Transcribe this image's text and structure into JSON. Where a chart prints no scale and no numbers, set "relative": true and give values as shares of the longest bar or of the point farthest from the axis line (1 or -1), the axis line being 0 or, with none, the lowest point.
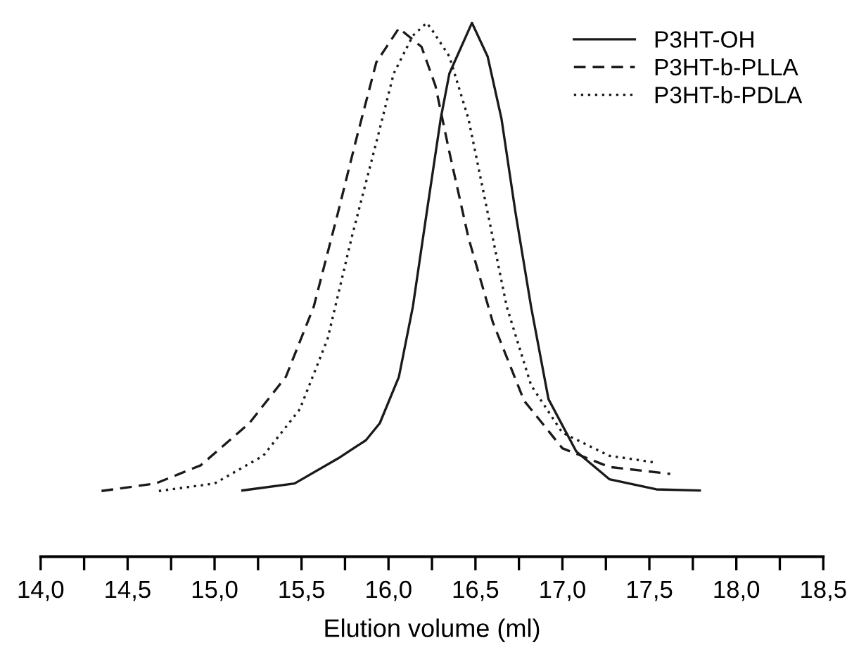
{
  "chart_data": {
    "type": "line",
    "xlabel": "Elution volume (ml)",
    "relative": true,
    "legend": "top right",
    "grid": false,
    "marker": "none",
    "xlim": [
      14.0,
      18.5
    ],
    "xticks": [
      {
        "value": 14.0,
        "label": "14,0"
      },
      {
        "value": 14.25,
        "label": null
      },
      {
        "value": 14.5,
        "label": "14,5"
      },
      {
        "value": 14.75,
        "label": null
      },
      {
        "value": 15.0,
        "label": "15,0"
      },
      {
        "value": 15.25,
        "label": null
      },
      {
        "value": 15.5,
        "label": "15,5"
      },
      {
        "value": 15.75,
        "label": null
      },
      {
        "value": 16.0,
        "label": "16,0"
      },
      {
        "value": 16.25,
        "label": null
      },
      {
        "value": 16.5,
        "label": "16,5"
      },
      {
        "value": 16.75,
        "label": null
      },
      {
        "value": 17.0,
        "label": "17,0"
      },
      {
        "value": 17.25,
        "label": null
      },
      {
        "value": 17.5,
        "label": "17,5"
      },
      {
        "value": 17.75,
        "label": null
      },
      {
        "value": 18.0,
        "label": "18,0"
      },
      {
        "value": 18.25,
        "label": null
      },
      {
        "value": 18.5,
        "label": "18,5"
      }
    ],
    "series": [
      {
        "name": "P3HT-OH",
        "color": "#1a1a1a",
        "line_style": "solid",
        "x": [
          15.16,
          15.46,
          15.71,
          15.87,
          15.95,
          16.06,
          16.14,
          16.22,
          16.3,
          16.35,
          16.48,
          16.57,
          16.65,
          16.73,
          16.82,
          16.92,
          17.08,
          17.27,
          17.54,
          17.79
        ],
        "values": [
          0.124,
          0.137,
          0.184,
          0.218,
          0.25,
          0.337,
          0.468,
          0.645,
          0.82,
          0.905,
          1.0,
          0.937,
          0.82,
          0.645,
          0.468,
          0.295,
          0.197,
          0.145,
          0.126,
          0.124
        ]
      },
      {
        "name": "P3HT-b-PLLA",
        "color": "#1a1a1a",
        "line_style": "dashed",
        "x": [
          14.35,
          14.66,
          14.92,
          15.2,
          15.41,
          15.57,
          15.71,
          15.81,
          15.93,
          16.06,
          16.19,
          16.27,
          16.35,
          16.46,
          16.6,
          16.78,
          17.0,
          17.27,
          17.62
        ],
        "values": [
          0.123,
          0.137,
          0.171,
          0.25,
          0.337,
          0.468,
          0.645,
          0.776,
          0.926,
          0.99,
          0.955,
          0.882,
          0.758,
          0.597,
          0.439,
          0.292,
          0.203,
          0.168,
          0.155
        ]
      },
      {
        "name": "P3HT-b-PDLA",
        "color": "#1a1a1a",
        "line_style": "dotted",
        "x": [
          14.68,
          15.0,
          15.28,
          15.49,
          15.65,
          15.79,
          15.93,
          16.03,
          16.14,
          16.22,
          16.25,
          16.35,
          16.46,
          16.57,
          16.68,
          16.82,
          17.0,
          17.27,
          17.54
        ],
        "values": [
          0.123,
          0.137,
          0.189,
          0.276,
          0.408,
          0.6,
          0.776,
          0.905,
          0.976,
          1.0,
          0.987,
          0.937,
          0.82,
          0.645,
          0.468,
          0.321,
          0.232,
          0.189,
          0.176
        ]
      }
    ]
  }
}
